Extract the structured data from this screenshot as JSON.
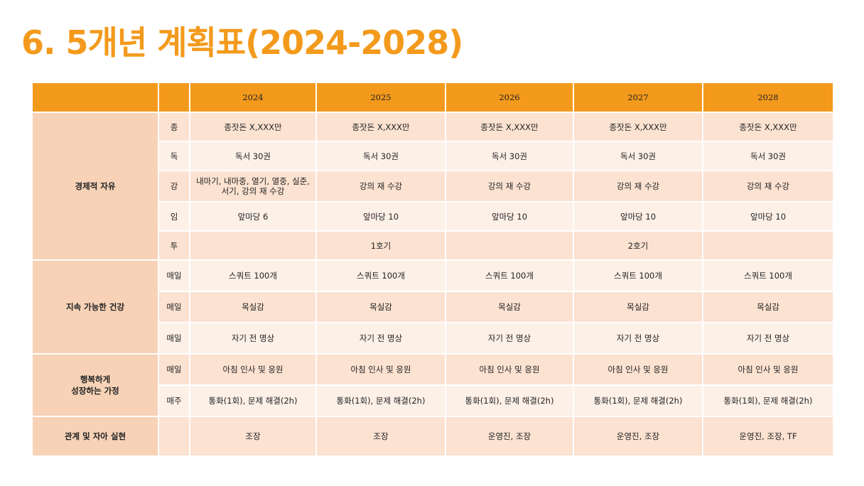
{
  "title": "6. 5개년 계획표(2024-2028)",
  "header": {
    "years": [
      "2024",
      "2025",
      "2026",
      "2027",
      "2028"
    ]
  },
  "sections": [
    {
      "category": "경제적 자유",
      "rows": [
        {
          "label": "종",
          "cells": [
            "종잣돈 X,XXX만",
            "종잣돈 X,XXX만",
            "종잣돈 X,XXX만",
            "종잣돈 X,XXX만",
            "종잣돈 X,XXX만"
          ]
        },
        {
          "label": "독",
          "cells": [
            "독서 30권",
            "독서 30권",
            "독서 30권",
            "독서 30권",
            "독서 30권"
          ]
        },
        {
          "label": "강",
          "cells": [
            "내마기, 내마중, 열기, 열중, 실준, 서기, 강의 재 수강",
            "강의 재 수강",
            "강의 재 수강",
            "강의 재 수강",
            "강의 재 수강"
          ]
        },
        {
          "label": "임",
          "cells": [
            "앞마당 6",
            "앞마당 10",
            "앞마당 10",
            "앞마당 10",
            "앞마당 10"
          ]
        },
        {
          "label": "투",
          "cells": [
            "",
            "1호기",
            "",
            "2호기",
            ""
          ]
        }
      ]
    },
    {
      "category": "지속 가능한 건강",
      "rows": [
        {
          "label": "매일",
          "cells": [
            "스쿼트 100개",
            "스쿼트 100개",
            "스쿼트 100개",
            "스쿼트 100개",
            "스쿼트 100개"
          ]
        },
        {
          "label": "매일",
          "cells": [
            "목실감",
            "목실감",
            "목실감",
            "목실감",
            "목실감"
          ]
        },
        {
          "label": "매일",
          "cells": [
            "자기 전 명상",
            "자기 전 명상",
            "자기 전 명상",
            "자기 전 명상",
            "자기 전 명상"
          ]
        }
      ]
    },
    {
      "category": "행복하게 성장하는 가정",
      "category_line1": "행복하게",
      "category_line2": "성장하는 가정",
      "rows": [
        {
          "label": "매일",
          "cells": [
            "아침 인사 및 응원",
            "아침 인사 및 응원",
            "아침 인사 및 응원",
            "아침 인사 및 응원",
            "아침 인사 및 응원"
          ]
        },
        {
          "label": "매주",
          "cells": [
            "통화(1회), 문제 해결(2h)",
            "통화(1회), 문제 해결(2h)",
            "통화(1회), 문제 해결(2h)",
            "통화(1회), 문제 해결(2h)",
            "통화(1회), 문제 해결(2h)"
          ]
        }
      ]
    },
    {
      "category": "관계 및 자아 실현",
      "rows": [
        {
          "label": "",
          "cells": [
            "조장",
            "조장",
            "운영진, 조장",
            "운영진, 조장",
            "운영진, 조장, TF"
          ]
        }
      ]
    }
  ],
  "colors": {
    "accent": "#f39a1c",
    "row_dark": "#fbe2d1",
    "row_light": "#fdf0e7",
    "category_bg": "#f7d2b6"
  }
}
